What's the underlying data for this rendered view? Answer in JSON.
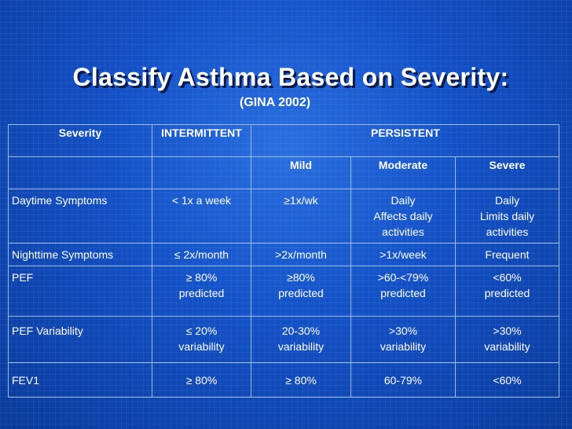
{
  "slide": {
    "title": "Classify Asthma Based on Severity:",
    "subtitle": "(GINA 2002)"
  },
  "table": {
    "header_row": {
      "severity": "Severity",
      "intermittent": "INTERMITTENT",
      "persistent": "PERSISTENT"
    },
    "subheader_row": {
      "mild": "Mild",
      "moderate": "Moderate",
      "severe": "Severe"
    },
    "rows": [
      {
        "label": "Daytime Symptoms",
        "intermittent": "< 1x a week",
        "mild": "≥1x/wk",
        "moderate": [
          "Daily",
          "Affects daily",
          "activities"
        ],
        "severe": [
          "Daily",
          "Limits daily",
          "activities"
        ]
      },
      {
        "label": "Nighttime Symptoms",
        "intermittent": "≤ 2x/month",
        "mild": ">2x/month",
        "moderate": ">1x/week",
        "severe": "Frequent"
      },
      {
        "label": "PEF",
        "intermittent": [
          "≥ 80%",
          "predicted"
        ],
        "mild": [
          "≥80%",
          "predicted"
        ],
        "moderate": [
          ">60-<79%",
          "predicted"
        ],
        "severe": [
          "<60%",
          "predicted"
        ]
      },
      {
        "label": "PEF Variability",
        "intermittent": [
          "≤ 20%",
          "variability"
        ],
        "mild": [
          "20-30%",
          "variability"
        ],
        "moderate": [
          ">30%",
          "variability"
        ],
        "severe": [
          ">30%",
          "variability"
        ]
      },
      {
        "label": "FEV1",
        "intermittent": "≥ 80%",
        "mild": "≥ 80%",
        "moderate": "60-79%",
        "severe": "<60%"
      }
    ]
  }
}
